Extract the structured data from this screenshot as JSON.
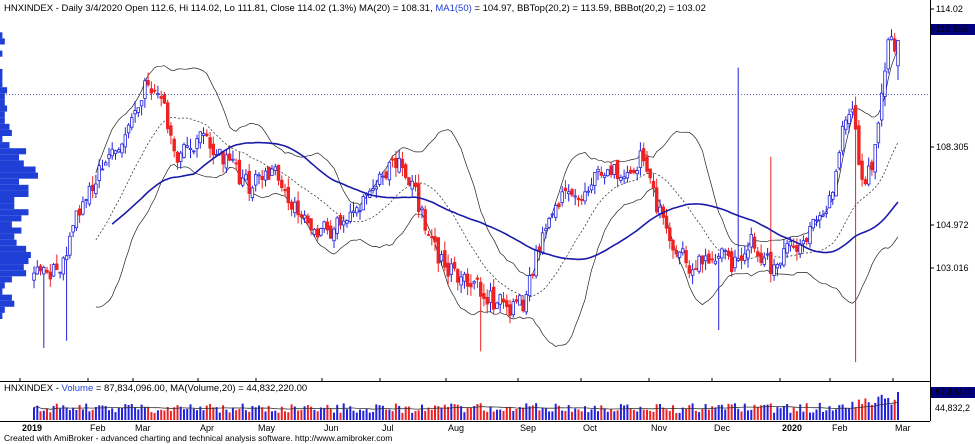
{
  "header": {
    "symbol": "HNXINDEX",
    "info": " - Daily 3/4/2020 Open 112.6, Hi 114.02, Lo 111.81, Close 114.02 (1.3%) MA(20) = 108.31, ",
    "ma50_text": "MA1(50)",
    "ma50_value": " = 104.97, BBTop(20,2) = 113.59, BBBot(20,2) = 103.02"
  },
  "volume_header": {
    "symbol": "HNXINDEX",
    "volume_label": "Volume",
    "volume_value": " = 87,834,096.00, MA(Volume,20) = 44,832,220.00"
  },
  "footer": "Created with AmiBroker - advanced charting and technical analysis software. http://www.amibroker.com",
  "colors": {
    "up": "#2222dd",
    "down": "#ee2222",
    "ma50": "#1a1aaa",
    "bb": "#222222",
    "ma20": "#222222",
    "profile": "#1f3fd6",
    "last_label": "#000080",
    "ma50_label": "#1f3fd6"
  },
  "chart_data": [
    {
      "type": "candlestick",
      "y_axis_labels": [
        "114.02",
        "113.595",
        "108.305",
        "104.972",
        "103.016"
      ],
      "x_axis_labels": [
        "2019",
        "Feb",
        "Mar",
        "Apr",
        "May",
        "Jun",
        "Jul",
        "Aug",
        "Sep",
        "Oct",
        "Nov",
        "Dec",
        "2020",
        "Feb",
        "Mar"
      ],
      "ylim": [
        95,
        115.5
      ],
      "last": {
        "open": 112.6,
        "high": 114.02,
        "low": 111.81,
        "close": 114.02
      },
      "indicators": {
        "ma20": 108.31,
        "ma50": 104.97,
        "bb_top": 113.59,
        "bb_bottom": 103.02
      },
      "close_anchors": [
        [
          0,
          100.8
        ],
        [
          8,
          101.0
        ],
        [
          13,
          104.0
        ],
        [
          20,
          106.5
        ],
        [
          28,
          108.8
        ],
        [
          34,
          111.5
        ],
        [
          38,
          111.2
        ],
        [
          44,
          107.5
        ],
        [
          52,
          108.6
        ],
        [
          60,
          107.0
        ],
        [
          66,
          106.0
        ],
        [
          74,
          106.8
        ],
        [
          80,
          104.6
        ],
        [
          86,
          103.2
        ],
        [
          92,
          103.5
        ],
        [
          98,
          104.1
        ],
        [
          104,
          105.6
        ],
        [
          110,
          107.3
        ],
        [
          116,
          106.0
        ],
        [
          122,
          102.6
        ],
        [
          128,
          101.0
        ],
        [
          134,
          100.4
        ],
        [
          140,
          99.6
        ],
        [
          146,
          99.0
        ],
        [
          150,
          99.3
        ],
        [
          156,
          103.0
        ],
        [
          162,
          105.0
        ],
        [
          168,
          105.6
        ],
        [
          174,
          106.9
        ],
        [
          180,
          106.5
        ],
        [
          186,
          107.3
        ],
        [
          190,
          105.4
        ],
        [
          196,
          102.6
        ],
        [
          202,
          101.2
        ],
        [
          208,
          102.2
        ],
        [
          214,
          101.6
        ],
        [
          220,
          102.6
        ],
        [
          226,
          101.5
        ],
        [
          232,
          102.3
        ],
        [
          236,
          102.6
        ],
        [
          240,
          103.9
        ],
        [
          244,
          104.8
        ],
        [
          248,
          109.0
        ],
        [
          251,
          110.5
        ],
        [
          254,
          106.0
        ],
        [
          257,
          107.2
        ],
        [
          262,
          113.6
        ],
        [
          265,
          114.02
        ]
      ]
    },
    {
      "type": "bar",
      "name": "Volume",
      "y_axis_labels": [
        "87,834,0",
        "44,832,2"
      ],
      "last_value": 87834096.0,
      "ma20_value": 44832220.0
    }
  ]
}
